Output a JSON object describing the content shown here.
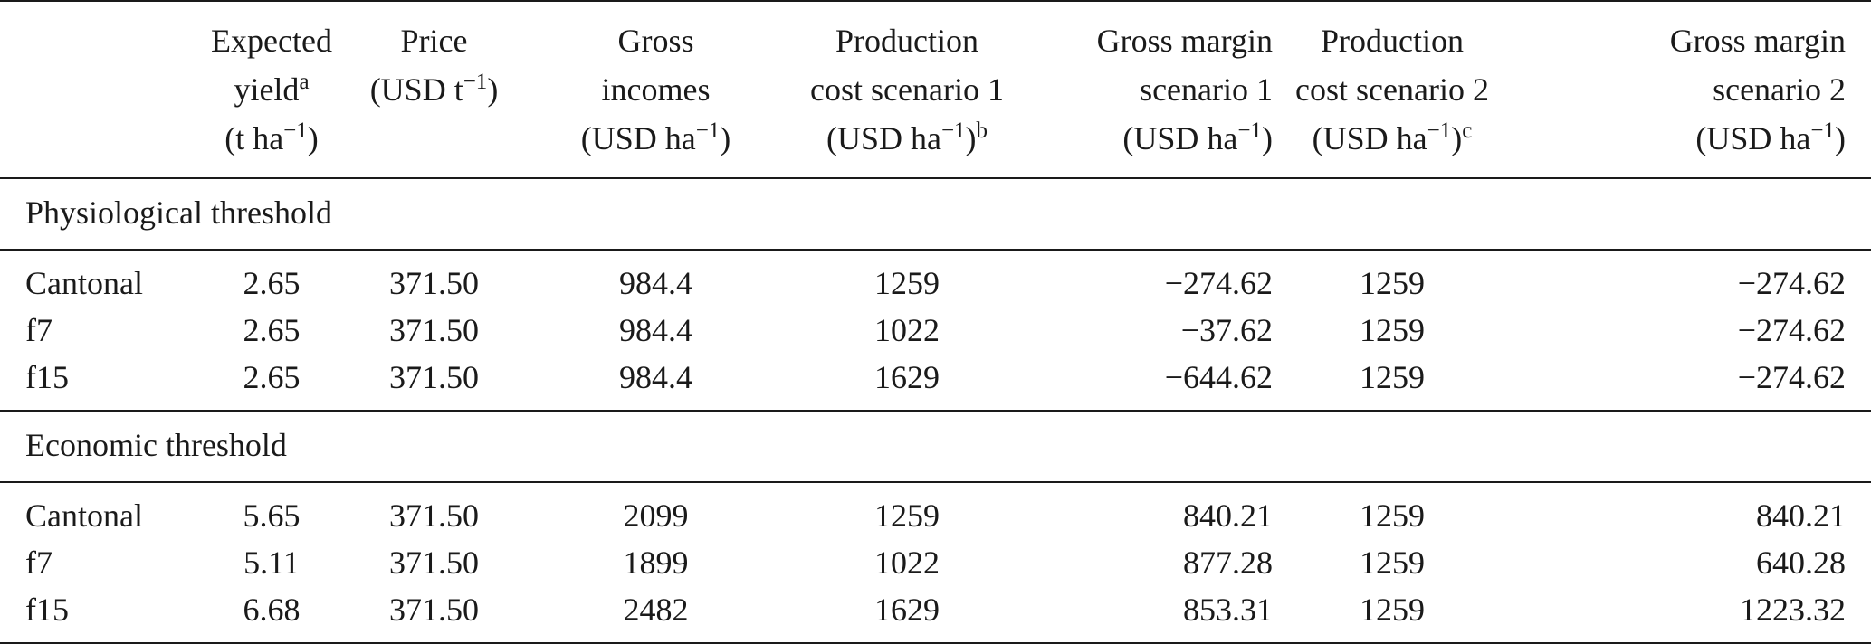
{
  "table": {
    "columns": [
      {
        "lines": [
          ""
        ],
        "sup": ""
      },
      {
        "lines": [
          "Expected",
          "yield",
          "(t ha",
          ")"
        ],
        "sup": "a",
        "exp": "−1"
      },
      {
        "lines": [
          "Price",
          "(USD t",
          ")"
        ],
        "exp": "−1"
      },
      {
        "lines": [
          "Gross",
          "incomes",
          "(USD ha",
          ")"
        ],
        "exp": "−1"
      },
      {
        "lines": [
          "Production",
          "cost scenario 1",
          "(USD ha",
          ")"
        ],
        "exp": "−1",
        "sup": "b"
      },
      {
        "lines": [
          "Gross margin",
          "scenario 1",
          "(USD ha",
          ")"
        ],
        "exp": "−1"
      },
      {
        "lines": [
          "Production",
          "cost scenario 2",
          "(USD ha",
          ")"
        ],
        "exp": "−1",
        "sup": "c"
      },
      {
        "lines": [
          "Gross margin",
          "scenario 2",
          "(USD ha",
          ")"
        ],
        "exp": "−1"
      }
    ],
    "sections": [
      {
        "title": "Physiological threshold",
        "rows": [
          [
            "Cantonal",
            "2.65",
            "371.50",
            "984.4",
            "1259",
            "−274.62",
            "1259",
            "−274.62"
          ],
          [
            "f7",
            "2.65",
            "371.50",
            "984.4",
            "1022",
            "−37.62",
            "1259",
            "−274.62"
          ],
          [
            "f15",
            "2.65",
            "371.50",
            "984.4",
            "1629",
            "−644.62",
            "1259",
            "−274.62"
          ]
        ]
      },
      {
        "title": "Economic threshold",
        "rows": [
          [
            "Cantonal",
            "5.65",
            "371.50",
            "2099",
            "1259",
            "840.21",
            "1259",
            "840.21"
          ],
          [
            "f7",
            "5.11",
            "371.50",
            "1899",
            "1022",
            "877.28",
            "1259",
            "640.28"
          ],
          [
            "f15",
            "6.68",
            "371.50",
            "2482",
            "1629",
            "853.31",
            "1259",
            "1223.32"
          ]
        ]
      }
    ]
  }
}
